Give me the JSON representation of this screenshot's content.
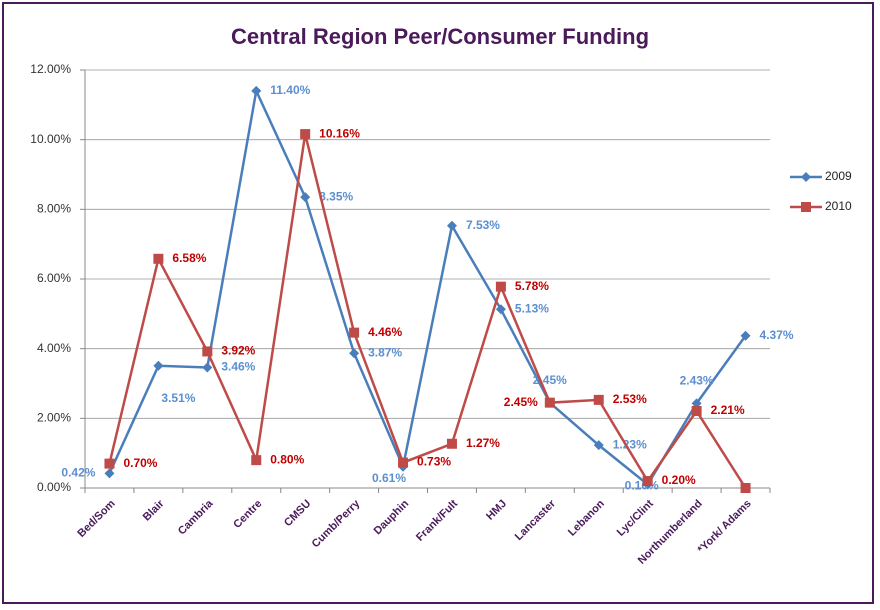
{
  "chart_data": {
    "type": "line",
    "title": "Central Region Peer/Consumer Funding",
    "categories": [
      "Bed/Som",
      "Blair",
      "Cambria",
      "Centre",
      "CMSU",
      "Cumb/Perry",
      "Dauphin",
      "Frank/Fult",
      "HMJ",
      "Lancaster",
      "Lebanon",
      "Lyc/Clint",
      "Northumberland",
      "*York/ Adams"
    ],
    "series": [
      {
        "name": "2009",
        "color": "#4a7ebb",
        "label_color": "#5b8fd0",
        "marker": "diamond",
        "values": [
          0.42,
          3.51,
          3.46,
          11.4,
          8.35,
          3.87,
          0.61,
          7.53,
          5.13,
          2.45,
          1.23,
          0.1,
          2.43,
          4.37
        ],
        "value_labels": [
          "0.42%",
          "3.51%",
          "3.46%",
          "11.40%",
          "8.35%",
          "3.87%",
          "0.61%",
          "7.53%",
          "5.13%",
          "2.45%",
          "1.23%",
          "0.10%",
          "2.43%",
          "4.37%"
        ]
      },
      {
        "name": "2010",
        "color": "#be4b48",
        "label_color": "#c00000",
        "marker": "square",
        "values": [
          0.7,
          6.58,
          3.92,
          0.8,
          10.16,
          4.46,
          0.73,
          1.27,
          5.78,
          2.45,
          2.53,
          0.2,
          2.21,
          0
        ],
        "value_labels": [
          "0.70%",
          "6.58%",
          "3.92%",
          "0.80%",
          "10.16%",
          "4.46%",
          "0.73%",
          "1.27%",
          "5.78%",
          "2.45%",
          "2.53%",
          "0.20%",
          "2.21%",
          null
        ]
      }
    ],
    "ylim": [
      0,
      12
    ],
    "yticks": [
      {
        "value": 0,
        "label": "0.00%"
      },
      {
        "value": 2,
        "label": "2.00%"
      },
      {
        "value": 4,
        "label": "4.00%"
      },
      {
        "value": 6,
        "label": "6.00%"
      },
      {
        "value": 8,
        "label": "8.00%"
      },
      {
        "value": 10,
        "label": "10.00%"
      },
      {
        "value": 12,
        "label": "12.00%"
      }
    ],
    "grid": true,
    "legend": "right"
  }
}
